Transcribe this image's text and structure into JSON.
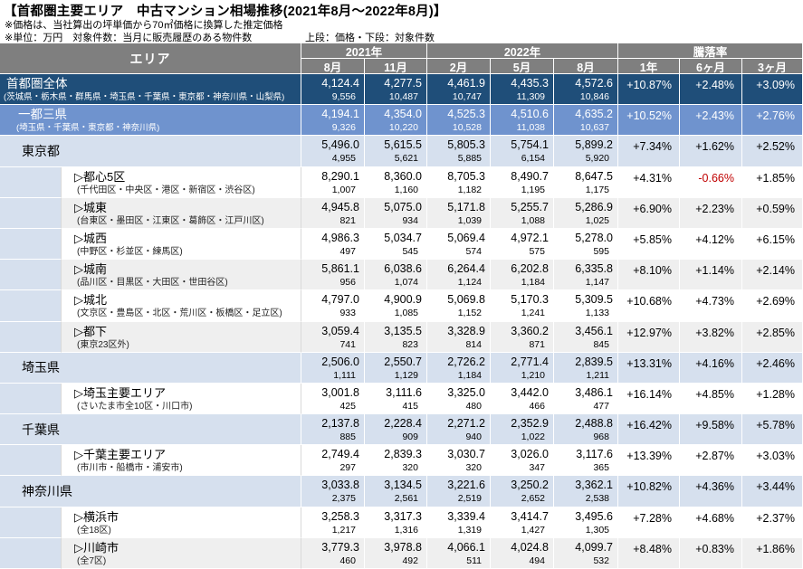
{
  "title": "【首都圏主要エリア　中古マンション相場推移(2021年8月～2022年8月)】",
  "notes": [
    "※価格は、当社算出の坪単価から70㎡価格に換算した推定価格",
    "※単位：万円　対象件数：当月に販売履歴のある物件数"
  ],
  "legend": "上段：価格・下段：対象件数",
  "colors": {
    "header_bg": "#7F7F7F",
    "total_bg": "#1F4E79",
    "subtotal_bg": "#6F93CE",
    "pref_bg": "#D6E0EE",
    "alt_row_bg": "#EFEFEF",
    "negative": "#C00000"
  },
  "chart_data": {
    "type": "table",
    "title": "首都圏主要エリア 中古マンション相場推移(2021年8月～2022年8月)",
    "unit": "万円",
    "area_header": "エリア",
    "column_groups": [
      {
        "label": "2021年",
        "span": 2
      },
      {
        "label": "2022年",
        "span": 3
      },
      {
        "label": "騰落率",
        "span": 3
      }
    ],
    "month_columns": [
      "8月",
      "11月",
      "2月",
      "5月",
      "8月"
    ],
    "rate_columns": [
      "1年",
      "6ヶ月",
      "3ヶ月"
    ],
    "rows": [
      {
        "type": "total",
        "name": "首都圏全体",
        "note": "(茨城県・栃木県・群馬県・埼玉県・千葉県・東京都・神奈川県・山梨県)",
        "prices": [
          "4,124.4",
          "4,277.5",
          "4,461.9",
          "4,435.3",
          "4,572.6"
        ],
        "counts": [
          "9,556",
          "10,487",
          "10,747",
          "11,309",
          "10,846"
        ],
        "rates": [
          "+10.87%",
          "+2.48%",
          "+3.09%"
        ]
      },
      {
        "type": "subtotal",
        "name": "一都三県",
        "note": "(埼玉県・千葉県・東京都・神奈川県)",
        "prices": [
          "4,194.1",
          "4,354.0",
          "4,525.3",
          "4,510.6",
          "4,635.2"
        ],
        "counts": [
          "9,326",
          "10,220",
          "10,528",
          "11,038",
          "10,637"
        ],
        "rates": [
          "+10.52%",
          "+2.43%",
          "+2.76%"
        ]
      },
      {
        "type": "pref",
        "name": "東京都",
        "note": "",
        "prices": [
          "5,496.0",
          "5,615.5",
          "5,805.3",
          "5,754.1",
          "5,899.2"
        ],
        "counts": [
          "4,955",
          "5,621",
          "5,885",
          "6,154",
          "5,920"
        ],
        "rates": [
          "+7.34%",
          "+1.62%",
          "+2.52%"
        ]
      },
      {
        "type": "sub",
        "shade": "white",
        "name": "▷都心5区",
        "note": "(千代田区・中央区・港区・新宿区・渋谷区)",
        "prices": [
          "8,290.1",
          "8,360.0",
          "8,705.3",
          "8,490.7",
          "8,647.5"
        ],
        "counts": [
          "1,007",
          "1,160",
          "1,182",
          "1,195",
          "1,175"
        ],
        "rates": [
          "+4.31%",
          "-0.66%",
          "+1.85%"
        ]
      },
      {
        "type": "sub",
        "shade": "gray",
        "name": "▷城東",
        "note": "(台東区・墨田区・江東区・葛飾区・江戸川区)",
        "prices": [
          "4,945.8",
          "5,075.0",
          "5,171.8",
          "5,255.7",
          "5,286.9"
        ],
        "counts": [
          "821",
          "934",
          "1,039",
          "1,088",
          "1,025"
        ],
        "rates": [
          "+6.90%",
          "+2.23%",
          "+0.59%"
        ]
      },
      {
        "type": "sub",
        "shade": "white",
        "name": "▷城西",
        "note": "(中野区・杉並区・練馬区)",
        "prices": [
          "4,986.3",
          "5,034.7",
          "5,069.4",
          "4,972.1",
          "5,278.0"
        ],
        "counts": [
          "497",
          "545",
          "574",
          "575",
          "595"
        ],
        "rates": [
          "+5.85%",
          "+4.12%",
          "+6.15%"
        ]
      },
      {
        "type": "sub",
        "shade": "gray",
        "name": "▷城南",
        "note": "(品川区・目黒区・大田区・世田谷区)",
        "prices": [
          "5,861.1",
          "6,038.6",
          "6,264.4",
          "6,202.8",
          "6,335.8"
        ],
        "counts": [
          "956",
          "1,074",
          "1,124",
          "1,184",
          "1,147"
        ],
        "rates": [
          "+8.10%",
          "+1.14%",
          "+2.14%"
        ]
      },
      {
        "type": "sub",
        "shade": "white",
        "name": "▷城北",
        "note": "(文京区・豊島区・北区・荒川区・板橋区・足立区)",
        "prices": [
          "4,797.0",
          "4,900.9",
          "5,069.8",
          "5,170.3",
          "5,309.5"
        ],
        "counts": [
          "933",
          "1,085",
          "1,152",
          "1,241",
          "1,133"
        ],
        "rates": [
          "+10.68%",
          "+4.73%",
          "+2.69%"
        ]
      },
      {
        "type": "sub",
        "shade": "gray",
        "name": "▷都下",
        "note": "(東京23区外)",
        "prices": [
          "3,059.4",
          "3,135.5",
          "3,328.9",
          "3,360.2",
          "3,456.1"
        ],
        "counts": [
          "741",
          "823",
          "814",
          "871",
          "845"
        ],
        "rates": [
          "+12.97%",
          "+3.82%",
          "+2.85%"
        ]
      },
      {
        "type": "pref",
        "name": "埼玉県",
        "note": "",
        "prices": [
          "2,506.0",
          "2,550.7",
          "2,726.2",
          "2,771.4",
          "2,839.5"
        ],
        "counts": [
          "1,111",
          "1,129",
          "1,184",
          "1,210",
          "1,211"
        ],
        "rates": [
          "+13.31%",
          "+4.16%",
          "+2.46%"
        ]
      },
      {
        "type": "sub",
        "shade": "white",
        "name": "▷埼玉主要エリア",
        "note": "(さいたま市全10区・川口市)",
        "prices": [
          "3,001.8",
          "3,111.6",
          "3,325.0",
          "3,442.0",
          "3,486.1"
        ],
        "counts": [
          "425",
          "415",
          "480",
          "466",
          "477"
        ],
        "rates": [
          "+16.14%",
          "+4.85%",
          "+1.28%"
        ]
      },
      {
        "type": "pref",
        "name": "千葉県",
        "note": "",
        "prices": [
          "2,137.8",
          "2,228.4",
          "2,271.2",
          "2,352.9",
          "2,488.8"
        ],
        "counts": [
          "885",
          "909",
          "940",
          "1,022",
          "968"
        ],
        "rates": [
          "+16.42%",
          "+9.58%",
          "+5.78%"
        ]
      },
      {
        "type": "sub",
        "shade": "white",
        "name": "▷千葉主要エリア",
        "note": "(市川市・船橋市・浦安市)",
        "prices": [
          "2,749.4",
          "2,839.3",
          "3,030.7",
          "3,026.0",
          "3,117.6"
        ],
        "counts": [
          "297",
          "320",
          "320",
          "347",
          "365"
        ],
        "rates": [
          "+13.39%",
          "+2.87%",
          "+3.03%"
        ]
      },
      {
        "type": "pref",
        "name": "神奈川県",
        "note": "",
        "prices": [
          "3,033.8",
          "3,134.5",
          "3,221.6",
          "3,250.2",
          "3,362.1"
        ],
        "counts": [
          "2,375",
          "2,561",
          "2,519",
          "2,652",
          "2,538"
        ],
        "rates": [
          "+10.82%",
          "+4.36%",
          "+3.44%"
        ]
      },
      {
        "type": "sub",
        "shade": "white",
        "name": "▷横浜市",
        "note": "(全18区)",
        "prices": [
          "3,258.3",
          "3,317.3",
          "3,339.4",
          "3,414.7",
          "3,495.6"
        ],
        "counts": [
          "1,217",
          "1,316",
          "1,319",
          "1,427",
          "1,305"
        ],
        "rates": [
          "+7.28%",
          "+4.68%",
          "+2.37%"
        ]
      },
      {
        "type": "sub",
        "shade": "gray",
        "name": "▷川崎市",
        "note": "(全7区)",
        "prices": [
          "3,779.3",
          "3,978.8",
          "4,066.1",
          "4,024.8",
          "4,099.7"
        ],
        "counts": [
          "460",
          "492",
          "511",
          "494",
          "532"
        ],
        "rates": [
          "+8.48%",
          "+0.83%",
          "+1.86%"
        ]
      }
    ]
  }
}
